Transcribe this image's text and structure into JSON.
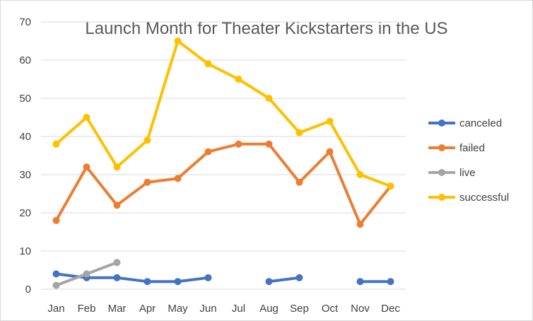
{
  "chart_data": {
    "type": "line",
    "title": "Launch Month for Theater Kickstarters in the US",
    "xlabel": "",
    "ylabel": "",
    "categories": [
      "Jan",
      "Feb",
      "Mar",
      "Apr",
      "May",
      "Jun",
      "Jul",
      "Aug",
      "Sep",
      "Oct",
      "Nov",
      "Dec"
    ],
    "ylim": [
      0,
      70
    ],
    "yticks": [
      0,
      10,
      20,
      30,
      40,
      50,
      60,
      70
    ],
    "grid": true,
    "legend_position": "right",
    "series": [
      {
        "name": "canceled",
        "color": "#4472C4",
        "values": [
          4,
          3,
          3,
          2,
          2,
          3,
          null,
          2,
          3,
          null,
          2,
          2
        ]
      },
      {
        "name": "failed",
        "color": "#ED7D31",
        "values": [
          18,
          32,
          22,
          28,
          29,
          36,
          38,
          38,
          28,
          36,
          17,
          27
        ]
      },
      {
        "name": "live",
        "color": "#A5A5A5",
        "values": [
          1,
          4,
          7,
          null,
          null,
          null,
          null,
          null,
          null,
          null,
          null,
          null
        ]
      },
      {
        "name": "successful",
        "color": "#FFC000",
        "values": [
          38,
          45,
          32,
          39,
          65,
          59,
          55,
          50,
          41,
          44,
          30,
          27
        ]
      }
    ]
  }
}
